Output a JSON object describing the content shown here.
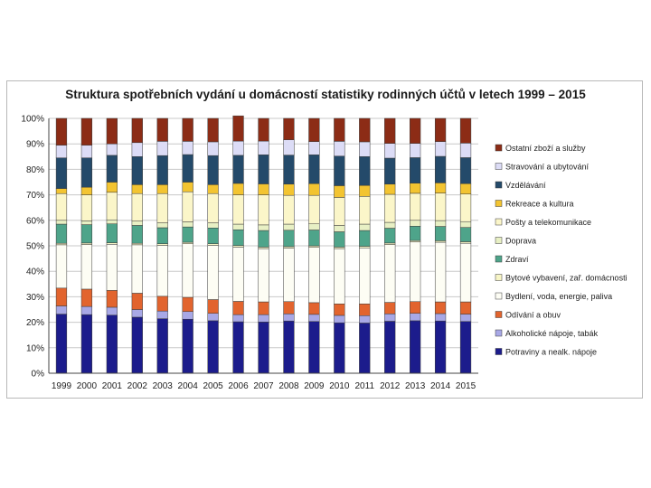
{
  "chart_data": {
    "type": "bar",
    "stacked": true,
    "title": "Struktura spotřebních vydání u domácností statistiky rodinných účtů v letech 1999 – 2015",
    "xlabel": "",
    "ylabel": "",
    "ylim": [
      0,
      100
    ],
    "yticks": [
      "0%",
      "10%",
      "20%",
      "30%",
      "40%",
      "50%",
      "60%",
      "70%",
      "80%",
      "90%",
      "100%"
    ],
    "grid": true,
    "legend_position": "right",
    "categories": [
      "1999",
      "2000",
      "2001",
      "2002",
      "2003",
      "2004",
      "2005",
      "2006",
      "2007",
      "2008",
      "2009",
      "2010",
      "2011",
      "2012",
      "2013",
      "2014",
      "2015"
    ],
    "series": [
      {
        "name": "Potraviny a nealk. nápoje",
        "color": "#1c1c8c",
        "values": [
          23.2,
          23.0,
          22.8,
          22.0,
          21.4,
          21.2,
          20.6,
          20.2,
          20.1,
          20.5,
          20.3,
          19.8,
          19.7,
          20.4,
          20.6,
          20.5,
          20.3
        ]
      },
      {
        "name": "Alkoholické nápoje, tabák",
        "color": "#a8a8e6",
        "values": [
          3.2,
          3.2,
          3.1,
          3.0,
          3.0,
          3.0,
          2.9,
          2.8,
          2.9,
          2.8,
          2.8,
          2.9,
          2.9,
          2.9,
          2.9,
          2.9,
          2.9
        ]
      },
      {
        "name": "Odívání a obuv",
        "color": "#e2642e",
        "values": [
          7.0,
          6.8,
          6.6,
          6.4,
          5.8,
          5.6,
          5.4,
          5.2,
          5.0,
          4.8,
          4.6,
          4.5,
          4.6,
          4.5,
          4.6,
          4.6,
          4.8
        ]
      },
      {
        "name": "Bydlení, voda, energie, paliva",
        "color": "#fdfdf4",
        "values": [
          17.0,
          17.5,
          18.1,
          19.0,
          20.0,
          21.0,
          21.3,
          21.3,
          20.9,
          21.0,
          21.7,
          21.7,
          22.0,
          22.7,
          23.4,
          23.4,
          23.0
        ]
      },
      {
        "name": "Bytové vybavení, zař. domácnosti",
        "color": "#f7f5c6",
        "values": [
          0.6,
          0.6,
          0.6,
          0.6,
          0.6,
          0.6,
          0.6,
          0.6,
          0.6,
          0.6,
          0.6,
          0.6,
          0.6,
          0.6,
          0.6,
          0.6,
          0.6
        ]
      },
      {
        "name": "Zdraví",
        "color": "#4ea48a",
        "values": [
          7.5,
          7.2,
          7.4,
          7.0,
          6.3,
          6.0,
          6.2,
          6.2,
          6.5,
          6.4,
          6.2,
          6.0,
          6.2,
          5.8,
          5.6,
          5.6,
          5.6
        ]
      },
      {
        "name": "Doprava",
        "color": "#e8f0c4",
        "values": [
          1.5,
          1.5,
          1.6,
          1.7,
          1.9,
          2.0,
          2.0,
          2.2,
          2.2,
          2.4,
          2.4,
          2.5,
          2.5,
          2.3,
          2.3,
          2.3,
          2.3
        ]
      },
      {
        "name": "Pošty a telekomunikace",
        "color": "#fbf6c9",
        "values": [
          10.5,
          10.2,
          10.8,
          10.8,
          11.5,
          11.8,
          11.5,
          11.5,
          11.8,
          11.3,
          11.2,
          11.0,
          10.9,
          11.0,
          10.6,
          10.8,
          10.8
        ]
      },
      {
        "name": "Rekreace a kultura",
        "color": "#f3c431",
        "values": [
          2.0,
          3.0,
          4.0,
          3.5,
          3.5,
          3.8,
          3.5,
          4.5,
          4.3,
          4.4,
          4.6,
          4.6,
          4.3,
          4.0,
          4.0,
          4.0,
          4.1
        ]
      },
      {
        "name": "Vzdělávání",
        "color": "#244a6a",
        "values": [
          12.0,
          11.5,
          10.5,
          11.0,
          11.4,
          10.8,
          11.4,
          11.0,
          11.4,
          11.4,
          11.3,
          11.6,
          11.3,
          10.2,
          10.0,
          10.4,
          10.2
        ]
      },
      {
        "name": "Stravování a ubytování",
        "color": "#dcdcf6",
        "values": [
          5.0,
          5.0,
          4.5,
          5.5,
          5.6,
          5.2,
          5.4,
          5.6,
          5.4,
          6.0,
          5.2,
          5.8,
          5.8,
          5.8,
          5.6,
          5.8,
          5.7
        ]
      },
      {
        "name": "Ostatní zboží a služby",
        "color": "#8c2c16",
        "values": [
          10.5,
          10.5,
          10.0,
          9.5,
          9.0,
          9.0,
          9.2,
          9.9,
          8.9,
          8.4,
          9.1,
          9.0,
          9.2,
          9.8,
          9.8,
          9.1,
          9.7
        ]
      }
    ]
  }
}
